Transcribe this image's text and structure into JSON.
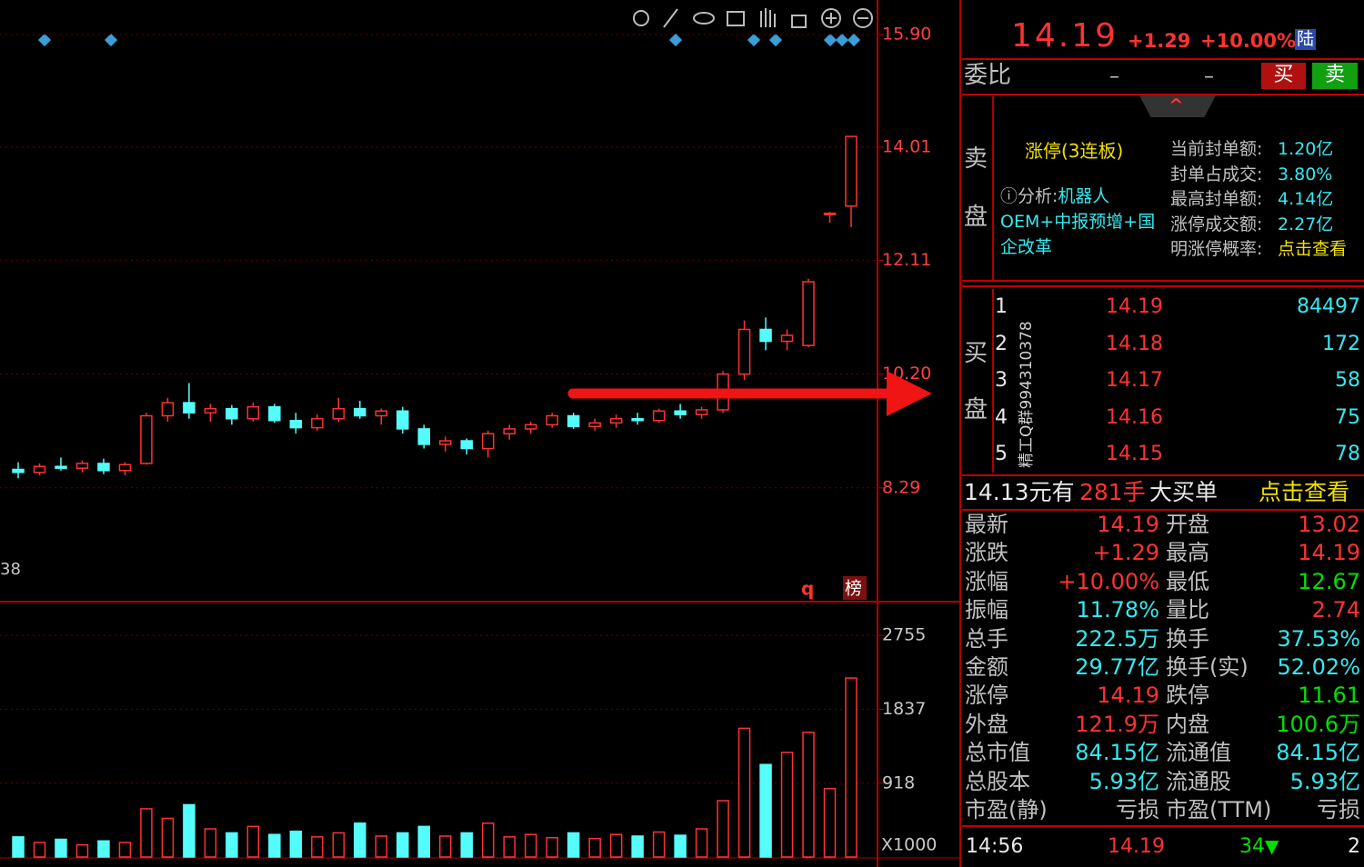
{
  "chart_data": {
    "type": "candlestick",
    "open": [
      8.6,
      8.55,
      8.65,
      8.62,
      8.7,
      8.58,
      8.7,
      9.5,
      9.72,
      9.55,
      9.62,
      9.45,
      9.65,
      9.42,
      9.3,
      9.45,
      9.62,
      9.5,
      9.58,
      9.28,
      9.02,
      9.08,
      8.95,
      9.2,
      9.28,
      9.35,
      9.5,
      9.32,
      9.38,
      9.45,
      9.42,
      9.58,
      9.52,
      9.6,
      10.2,
      10.95,
      10.75,
      10.68,
      12.9,
      13.02
    ],
    "high": [
      8.72,
      8.7,
      8.8,
      8.75,
      8.78,
      8.72,
      9.55,
      9.8,
      10.05,
      9.7,
      9.68,
      9.72,
      9.7,
      9.55,
      9.52,
      9.8,
      9.75,
      9.62,
      9.65,
      9.35,
      9.15,
      9.12,
      9.25,
      9.35,
      9.4,
      9.55,
      9.55,
      9.45,
      9.52,
      9.55,
      9.62,
      9.7,
      9.65,
      10.25,
      11.1,
      11.15,
      10.95,
      11.8,
      12.92,
      14.19
    ],
    "low": [
      8.45,
      8.5,
      8.58,
      8.55,
      8.52,
      8.5,
      8.68,
      9.4,
      9.45,
      9.4,
      9.35,
      9.4,
      9.38,
      9.2,
      9.25,
      9.4,
      9.45,
      9.35,
      9.2,
      8.95,
      8.9,
      8.85,
      8.8,
      9.1,
      9.2,
      9.3,
      9.28,
      9.25,
      9.3,
      9.35,
      9.38,
      9.45,
      9.45,
      9.55,
      10.1,
      10.6,
      10.6,
      10.65,
      12.74,
      12.67
    ],
    "close": [
      8.55,
      8.65,
      8.62,
      8.7,
      8.58,
      8.68,
      9.5,
      9.72,
      9.55,
      9.62,
      9.45,
      9.65,
      9.42,
      9.3,
      9.45,
      9.62,
      9.5,
      9.58,
      9.28,
      9.02,
      9.08,
      8.95,
      9.2,
      9.28,
      9.35,
      9.5,
      9.32,
      9.38,
      9.45,
      9.42,
      9.58,
      9.52,
      9.6,
      10.2,
      10.95,
      10.75,
      10.85,
      11.75,
      12.9,
      14.19
    ],
    "volume": [
      250,
      180,
      220,
      150,
      200,
      180,
      600,
      480,
      650,
      350,
      300,
      380,
      280,
      320,
      250,
      300,
      420,
      260,
      300,
      380,
      260,
      300,
      420,
      250,
      280,
      240,
      300,
      230,
      280,
      260,
      310,
      270,
      350,
      700,
      1600,
      1150,
      1300,
      1550,
      850,
      2225
    ],
    "ylim": [
      6.38,
      16.48
    ],
    "yticks": [
      {
        "value": 15.9,
        "label": "15.90"
      },
      14.01,
      12.11,
      {
        "value": 10.2,
        "label": "10.20"
      },
      8.29
    ],
    "volume_ylim": [
      0,
      3175
    ],
    "volume_yticks": [
      2755,
      1837,
      918
    ],
    "volume_unit": "X1000",
    "colors": {
      "up": "#ff3232",
      "down": "#54fcfc"
    }
  },
  "chart_labels": {
    "left_edge": "38",
    "q": "q",
    "rank": "榜"
  },
  "quote": {
    "price": "14.19",
    "change": "+1.29",
    "change_pct": "+10.00%",
    "market": "陆"
  },
  "order_ratio": {
    "label": "委比",
    "value1": "–",
    "value2": "–",
    "buy": "买",
    "sell": "卖"
  },
  "sell_side": {
    "label_top": "卖",
    "label_bottom": "盘",
    "limit_up": "涨停(3连板)",
    "analysis_label": "ⓘ分析:",
    "analysis": "机器人OEM+中报预增+国企改革",
    "info": [
      [
        "当前封单额:",
        "1.20亿"
      ],
      [
        "封单占成交:",
        "3.80%"
      ],
      [
        "最高封单额:",
        "4.14亿"
      ],
      [
        "涨停成交额:",
        "2.27亿"
      ],
      [
        "明涨停概率:",
        "点击查看"
      ]
    ]
  },
  "buy_side": {
    "label_top": "买",
    "label_bottom": "盘",
    "watermark": "精工Q群994310378",
    "rows": [
      [
        "1",
        "14.19",
        "84497"
      ],
      [
        "2",
        "14.18",
        "172"
      ],
      [
        "3",
        "14.17",
        "58"
      ],
      [
        "4",
        "14.16",
        "75"
      ],
      [
        "5",
        "14.15",
        "78"
      ]
    ]
  },
  "big_order": {
    "price_text": "14.13元有",
    "lots": "281手",
    "kind": "大买单",
    "link": "点击查看"
  },
  "stats": [
    [
      "最新",
      "14.19",
      "开盘",
      "13.02"
    ],
    [
      "涨跌",
      "+1.29",
      "最高",
      "14.19"
    ],
    [
      "涨幅",
      "+10.00%",
      "最低",
      "12.67"
    ],
    [
      "振幅",
      "11.78%",
      "量比",
      "2.74"
    ],
    [
      "总手",
      "222.5万",
      "换手",
      "37.53%"
    ],
    [
      "金额",
      "29.77亿",
      "换手(实)",
      "52.02%"
    ],
    [
      "涨停",
      "14.19",
      "跌停",
      "11.61"
    ],
    [
      "外盘",
      "121.9万",
      "内盘",
      "100.6万"
    ],
    [
      "总市值",
      "84.15亿",
      "流通值",
      "84.15亿"
    ],
    [
      "总股本",
      "5.93亿",
      "流通股",
      "5.93亿"
    ],
    [
      "市盈(静)",
      "亏损",
      "市盈(TTM)",
      "亏损"
    ]
  ],
  "tick": {
    "time": "14:56",
    "price": "14.19",
    "volume": "34",
    "count": "2"
  }
}
